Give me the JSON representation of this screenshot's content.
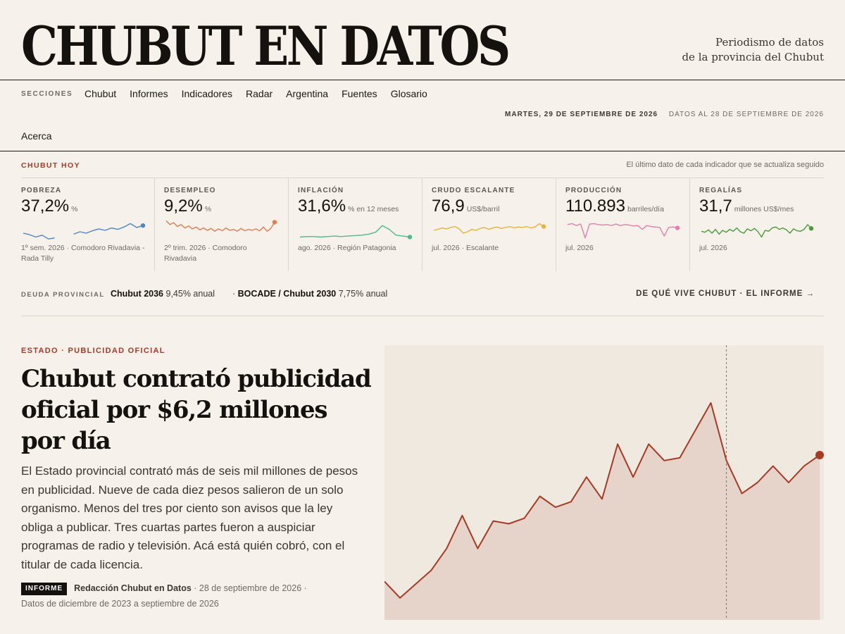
{
  "header": {
    "title": "CHUBUT EN DATOS",
    "tagline_1": "Periodismo de datos",
    "tagline_2": "de la provincia del Chubut"
  },
  "nav": {
    "label": "SECCIONES",
    "items": [
      "Chubut",
      "Informes",
      "Indicadores",
      "Radar",
      "Argentina",
      "Fuentes",
      "Glosario"
    ],
    "item_overflow": "Acerca",
    "date_today": "MARTES, 29 DE SEPTIEMBRE DE 2026",
    "data_date": "DATOS AL 28 DE SEPTIEMBRE DE 2026"
  },
  "today": {
    "label": "CHUBUT HOY",
    "note": "El último dato de cada indicador que se actualiza seguido",
    "indicators": [
      {
        "label": "POBREZA",
        "value": "37,2%",
        "unit": "%",
        "foot": "1º sem. 2026 · Comodoro Rivadavia - Rada Tilly",
        "color": "#4a86c8",
        "series": [
          [
            0,
            22
          ],
          [
            1,
            19
          ],
          [
            2,
            14
          ],
          [
            3,
            18
          ],
          [
            4,
            10
          ],
          [
            5,
            12
          ],
          [
            null,
            null
          ],
          [
            8,
            20
          ],
          [
            9,
            25
          ],
          [
            10,
            22
          ],
          [
            11,
            27
          ],
          [
            12,
            31
          ],
          [
            13,
            28
          ],
          [
            14,
            33
          ],
          [
            15,
            30
          ],
          [
            16,
            35
          ],
          [
            17,
            42
          ],
          [
            18,
            34
          ],
          [
            19,
            38
          ]
        ]
      },
      {
        "label": "DESEMPLEO",
        "value": "9,2%",
        "unit": "%",
        "foot": "2º trim. 2026 · Comodoro Rivadavia",
        "color": "#e07c4f",
        "series": [
          [
            0,
            48
          ],
          [
            1,
            40
          ],
          [
            2,
            44
          ],
          [
            3,
            36
          ],
          [
            4,
            40
          ],
          [
            5,
            33
          ],
          [
            6,
            37
          ],
          [
            7,
            31
          ],
          [
            8,
            35
          ],
          [
            9,
            29
          ],
          [
            10,
            33
          ],
          [
            11,
            28
          ],
          [
            12,
            32
          ],
          [
            13,
            26
          ],
          [
            14,
            31
          ],
          [
            15,
            27
          ],
          [
            16,
            33
          ],
          [
            17,
            28
          ],
          [
            18,
            30
          ],
          [
            19,
            26
          ],
          [
            20,
            32
          ],
          [
            21,
            27
          ],
          [
            22,
            30
          ],
          [
            23,
            28
          ],
          [
            24,
            31
          ],
          [
            25,
            27
          ],
          [
            26,
            35
          ],
          [
            27,
            26
          ],
          [
            28,
            32
          ],
          [
            29,
            45
          ]
        ]
      },
      {
        "label": "INFLACIÓN",
        "value": "31,6%",
        "unit": "% en 12 meses",
        "foot": "ago. 2026 · Región Patagonia",
        "color": "#4fb98c",
        "series": [
          [
            0,
            14
          ],
          [
            1,
            15
          ],
          [
            2,
            15
          ],
          [
            3,
            14
          ],
          [
            4,
            15
          ],
          [
            5,
            16
          ],
          [
            6,
            15
          ],
          [
            7,
            16
          ],
          [
            8,
            17
          ],
          [
            9,
            18
          ],
          [
            10,
            20
          ],
          [
            11,
            24
          ],
          [
            12,
            38
          ],
          [
            13,
            30
          ],
          [
            14,
            18
          ],
          [
            15,
            16
          ],
          [
            16,
            14
          ]
        ]
      },
      {
        "label": "CRUDO ESCALANTE",
        "value": "76,9",
        "unit": "US$/barril",
        "foot": "jul. 2026 · Escalante",
        "color": "#e8b33a",
        "series": [
          [
            0,
            28
          ],
          [
            1,
            30
          ],
          [
            2,
            33
          ],
          [
            3,
            31
          ],
          [
            4,
            34
          ],
          [
            5,
            36
          ],
          [
            6,
            31
          ],
          [
            7,
            22
          ],
          [
            8,
            25
          ],
          [
            9,
            30
          ],
          [
            10,
            28
          ],
          [
            11,
            32
          ],
          [
            12,
            34
          ],
          [
            13,
            30
          ],
          [
            14,
            33
          ],
          [
            15,
            35
          ],
          [
            16,
            32
          ],
          [
            17,
            34
          ],
          [
            18,
            36
          ],
          [
            19,
            33
          ],
          [
            20,
            35
          ],
          [
            21,
            34
          ],
          [
            22,
            36
          ],
          [
            23,
            33
          ],
          [
            24,
            35
          ],
          [
            25,
            42
          ],
          [
            26,
            36
          ]
        ]
      },
      {
        "label": "PRODUCCIÓN",
        "value": "110.893",
        "unit": "barriles/día",
        "foot": "jul. 2026",
        "color": "#e37fb0",
        "series": [
          [
            0,
            40
          ],
          [
            1,
            42
          ],
          [
            2,
            38
          ],
          [
            3,
            41
          ],
          [
            4,
            12
          ],
          [
            5,
            41
          ],
          [
            6,
            42
          ],
          [
            7,
            40
          ],
          [
            8,
            39
          ],
          [
            9,
            40
          ],
          [
            10,
            38
          ],
          [
            11,
            41
          ],
          [
            12,
            38
          ],
          [
            13,
            40
          ],
          [
            14,
            39
          ],
          [
            15,
            37
          ],
          [
            16,
            38
          ],
          [
            17,
            30
          ],
          [
            18,
            38
          ],
          [
            19,
            36
          ],
          [
            20,
            35
          ],
          [
            21,
            34
          ],
          [
            22,
            16
          ],
          [
            23,
            34
          ],
          [
            24,
            35
          ],
          [
            25,
            33
          ]
        ]
      },
      {
        "label": "REGALÍAS",
        "value": "31,7",
        "unit": "millones US$/mes",
        "foot": "jul. 2026",
        "color": "#4a9a3a",
        "series": [
          [
            0,
            26
          ],
          [
            1,
            24
          ],
          [
            2,
            29
          ],
          [
            3,
            22
          ],
          [
            4,
            30
          ],
          [
            5,
            20
          ],
          [
            6,
            28
          ],
          [
            7,
            24
          ],
          [
            8,
            30
          ],
          [
            9,
            26
          ],
          [
            10,
            33
          ],
          [
            11,
            25
          ],
          [
            12,
            22
          ],
          [
            13,
            31
          ],
          [
            14,
            27
          ],
          [
            15,
            32
          ],
          [
            16,
            25
          ],
          [
            17,
            14
          ],
          [
            18,
            28
          ],
          [
            19,
            26
          ],
          [
            20,
            33
          ],
          [
            21,
            35
          ],
          [
            22,
            30
          ],
          [
            23,
            33
          ],
          [
            24,
            29
          ],
          [
            25,
            22
          ],
          [
            26,
            31
          ],
          [
            27,
            27
          ],
          [
            28,
            26
          ],
          [
            29,
            30
          ],
          [
            30,
            40
          ],
          [
            31,
            32
          ]
        ]
      }
    ]
  },
  "debt": {
    "label": "DEUDA PROVINCIAL",
    "bond1_name": "Chubut 2036",
    "bond1_rate": "9,45% anual",
    "bond2_name": "BOCADE / Chubut 2030",
    "bond2_rate": "7,75% anual",
    "report_link": "DE QUÉ VIVE CHUBUT · EL INFORME →"
  },
  "article": {
    "kicker": "ESTADO · PUBLICIDAD OFICIAL",
    "headline": "Chubut contrató publicidad oficial por $6,2 millones por día",
    "dek": "El Estado provincial contrató más de seis mil millones de pesos en publicidad. Nueve de cada diez pesos salieron de un solo organismo. Menos del tres por ciento son avisos que la ley obliga a publicar. Tres cuartas partes fueron a auspiciar programas de radio y televisión. Acá está quién cobró, con el titular de cada licencia.",
    "badge": "INFORME",
    "author": "Redacción Chubut en Datos",
    "date": "· 28 de septiembre de 2026 ·",
    "period": "Datos de diciembre de 2023 a septiembre de 2026"
  },
  "chart_data": {
    "type": "area",
    "title": "",
    "xlabel": "",
    "ylabel": "",
    "color": "#a63a23",
    "fill": "#e6d3ca",
    "ylim": [
      0,
      100
    ],
    "marker_index": 22,
    "values": [
      14,
      8,
      13,
      18,
      26,
      38,
      26,
      36,
      35,
      37,
      45,
      41,
      43,
      52,
      44,
      64,
      52,
      64,
      58,
      59,
      69,
      79,
      58,
      46,
      50,
      56,
      50,
      56,
      60
    ]
  }
}
